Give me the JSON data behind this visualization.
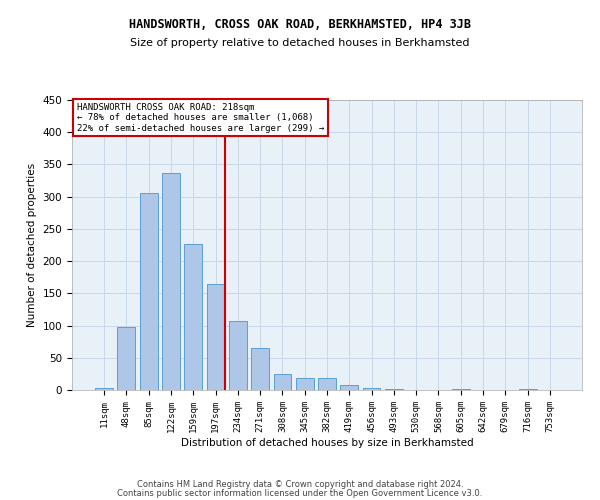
{
  "title": "HANDSWORTH, CROSS OAK ROAD, BERKHAMSTED, HP4 3JB",
  "subtitle": "Size of property relative to detached houses in Berkhamsted",
  "xlabel": "Distribution of detached houses by size in Berkhamsted",
  "ylabel": "Number of detached properties",
  "footer_line1": "Contains HM Land Registry data © Crown copyright and database right 2024.",
  "footer_line2": "Contains public sector information licensed under the Open Government Licence v3.0.",
  "bar_labels": [
    "11sqm",
    "48sqm",
    "85sqm",
    "122sqm",
    "159sqm",
    "197sqm",
    "234sqm",
    "271sqm",
    "308sqm",
    "345sqm",
    "382sqm",
    "419sqm",
    "456sqm",
    "493sqm",
    "530sqm",
    "568sqm",
    "605sqm",
    "642sqm",
    "679sqm",
    "716sqm",
    "753sqm"
  ],
  "bar_values": [
    3,
    97,
    305,
    337,
    226,
    165,
    107,
    65,
    25,
    18,
    18,
    7,
    3,
    1,
    0,
    0,
    1,
    0,
    0,
    1,
    0
  ],
  "bar_color": "#aec6e8",
  "bar_edge_color": "#5a9fd4",
  "grid_color": "#c8d8e8",
  "background_color": "#e8f0f8",
  "annotation_text_line1": "HANDSWORTH CROSS OAK ROAD: 218sqm",
  "annotation_text_line2": "← 78% of detached houses are smaller (1,068)",
  "annotation_text_line3": "22% of semi-detached houses are larger (299) →",
  "vline_color": "#cc0000",
  "vline_x_index": 5.43,
  "ylim": [
    0,
    450
  ],
  "yticks": [
    0,
    50,
    100,
    150,
    200,
    250,
    300,
    350,
    400,
    450
  ]
}
